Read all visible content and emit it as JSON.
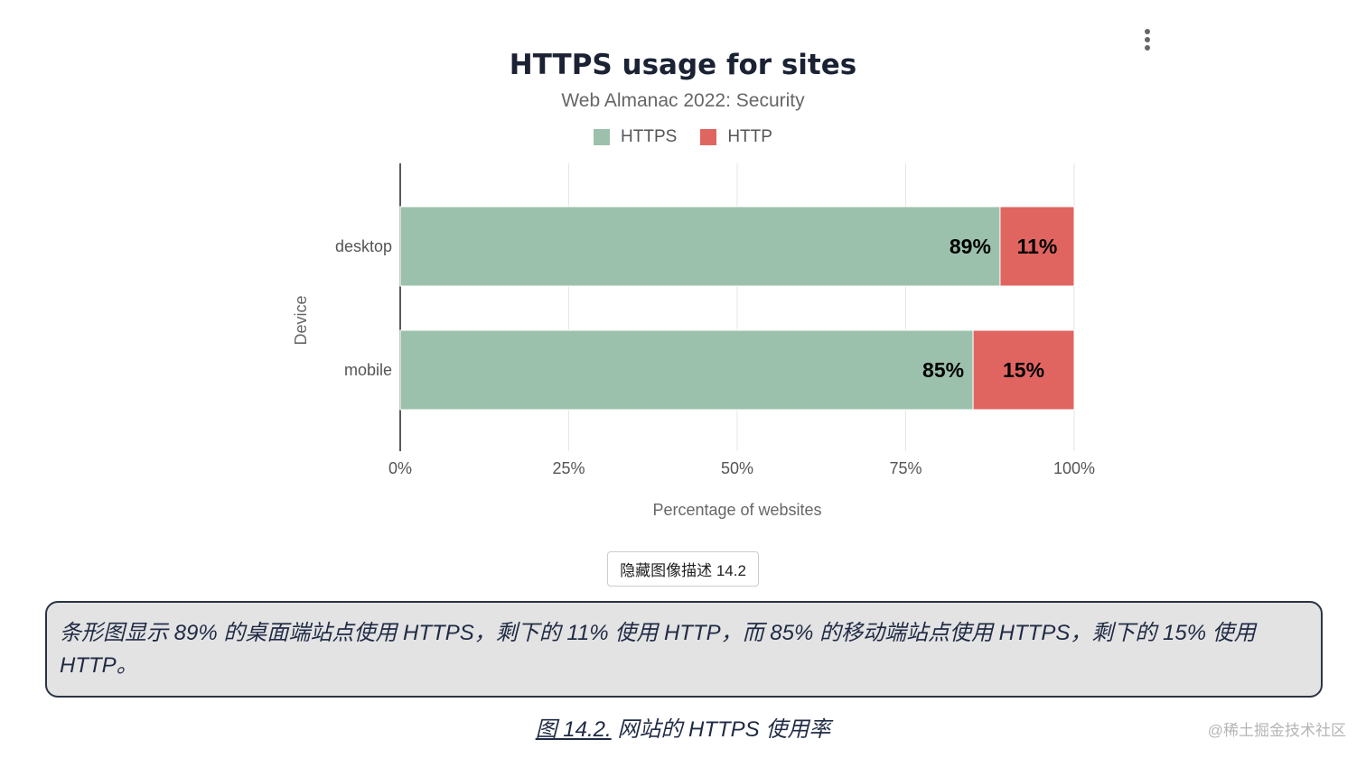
{
  "header": {
    "menu_icon": "more-vertical-icon"
  },
  "chart_data": {
    "type": "bar",
    "orientation": "horizontal",
    "stacked": true,
    "title": "HTTPS usage for sites",
    "subtitle": "Web Almanac 2022: Security",
    "xlabel": "Percentage of websites",
    "ylabel": "Device",
    "categories": [
      "desktop",
      "mobile"
    ],
    "series": [
      {
        "name": "HTTPS",
        "values": [
          89,
          85
        ],
        "labels": [
          "89%",
          "85%"
        ],
        "color": "#9bc1ac"
      },
      {
        "name": "HTTP",
        "values": [
          11,
          15
        ],
        "labels": [
          "11%",
          "15%"
        ],
        "color": "#e06560"
      }
    ],
    "xlim": [
      0,
      100
    ],
    "xticks": [
      0,
      25,
      50,
      75,
      100
    ],
    "xtick_labels": [
      "0%",
      "25%",
      "50%",
      "75%",
      "100%"
    ],
    "grid": true,
    "legend_position": "top-center"
  },
  "controls": {
    "toggle_description_label": "隐藏图像描述 14.2"
  },
  "description": {
    "text": "条形图显示 89% 的桌面端站点使用 HTTPS，剩下的 11% 使用 HTTP，而 85% 的移动端站点使用 HTTPS，剩下的 15% 使用 HTTP。"
  },
  "caption": {
    "figure_number": "图 14.2.",
    "text": " 网站的 HTTPS 使用率"
  },
  "watermark": {
    "text": "@稀土掘金技术社区"
  }
}
